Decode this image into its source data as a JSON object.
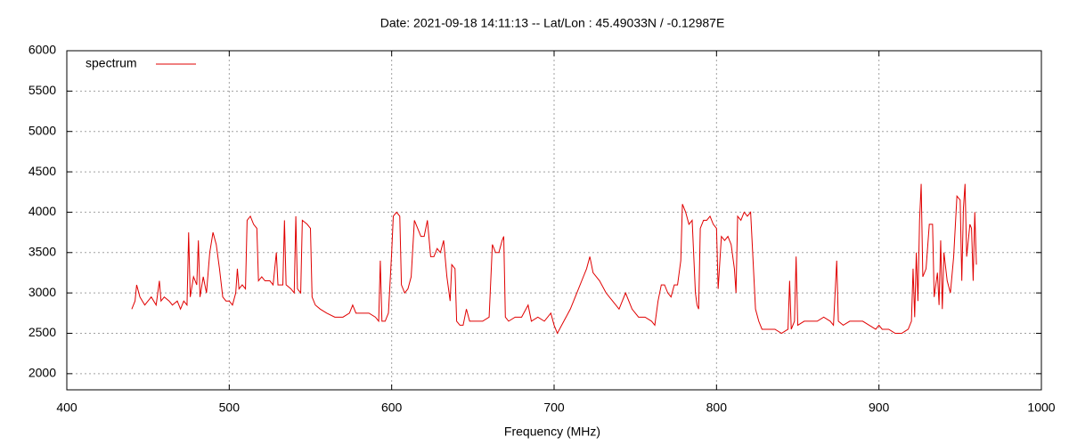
{
  "chart_data": {
    "type": "line",
    "title": "Date: 2021-09-18 14:11:13  --  Lat/Lon : 45.49033N / -0.12987E",
    "x_label": "Frequency (MHz)",
    "xlim": [
      400,
      1000
    ],
    "xticks": [
      400,
      500,
      600,
      700,
      800,
      900,
      1000
    ],
    "ylim": [
      1800,
      6000
    ],
    "yticks": [
      2000,
      2500,
      3000,
      3500,
      4000,
      4500,
      5000,
      5500,
      6000
    ],
    "grid": true,
    "legend": "top-left",
    "x": [
      440,
      442,
      443,
      445,
      448,
      450,
      452,
      455,
      457,
      458,
      460,
      463,
      465,
      468,
      470,
      472,
      474,
      475,
      476,
      478,
      480,
      481,
      482,
      484,
      486,
      488,
      490,
      492,
      494,
      496,
      498,
      500,
      502,
      504,
      505,
      506,
      508,
      510,
      511,
      513,
      515,
      517,
      518,
      520,
      522,
      525,
      527,
      529,
      530,
      533,
      534,
      535,
      538,
      540,
      541,
      542,
      544,
      545,
      548,
      550,
      551,
      553,
      556,
      560,
      565,
      570,
      574,
      576,
      578,
      582,
      586,
      590,
      592,
      593,
      594,
      596,
      598,
      600,
      601,
      603,
      605,
      606,
      608,
      610,
      612,
      614,
      616,
      618,
      620,
      622,
      624,
      626,
      628,
      630,
      632,
      634,
      636,
      637,
      639,
      640,
      642,
      644,
      646,
      648,
      652,
      656,
      660,
      662,
      664,
      666,
      668,
      669,
      670,
      672,
      676,
      680,
      684,
      686,
      690,
      694,
      698,
      700,
      702,
      706,
      710,
      714,
      718,
      720,
      722,
      724,
      728,
      732,
      736,
      740,
      744,
      748,
      752,
      756,
      760,
      762,
      764,
      766,
      768,
      770,
      772,
      774,
      776,
      778,
      779,
      781,
      783,
      785,
      787,
      788,
      789,
      790,
      792,
      794,
      796,
      798,
      800,
      801,
      803,
      805,
      807,
      809,
      811,
      812,
      813,
      815,
      817,
      819,
      821,
      822,
      824,
      826,
      828,
      832,
      836,
      840,
      844,
      845,
      846,
      848,
      849,
      850,
      854,
      858,
      862,
      866,
      870,
      872,
      874,
      875,
      878,
      882,
      886,
      890,
      894,
      898,
      900,
      902,
      906,
      910,
      914,
      918,
      920,
      921,
      922,
      923,
      924,
      925,
      926,
      927,
      929,
      931,
      933,
      934,
      936,
      937,
      938,
      939,
      940,
      942,
      944,
      946,
      948,
      950,
      951,
      952,
      953,
      954,
      956,
      957,
      958,
      959,
      960
    ],
    "series": [
      {
        "name": "spectrum",
        "color": "#e00000",
        "values": [
          2800,
          2900,
          3100,
          2950,
          2850,
          2900,
          2950,
          2850,
          3150,
          2900,
          2950,
          2900,
          2850,
          2900,
          2800,
          2900,
          2850,
          3750,
          2950,
          3200,
          3100,
          3650,
          2950,
          3200,
          3000,
          3500,
          3750,
          3600,
          3300,
          2950,
          2900,
          2900,
          2850,
          3000,
          3300,
          3050,
          3100,
          3050,
          3900,
          3950,
          3850,
          3800,
          3150,
          3200,
          3150,
          3150,
          3100,
          3500,
          3100,
          3100,
          3900,
          3100,
          3050,
          3000,
          3950,
          3050,
          3000,
          3900,
          3850,
          3800,
          2950,
          2850,
          2800,
          2750,
          2700,
          2700,
          2750,
          2850,
          2750,
          2750,
          2750,
          2700,
          2650,
          3400,
          2650,
          2650,
          2750,
          3500,
          3950,
          4000,
          3950,
          3100,
          3000,
          3050,
          3200,
          3900,
          3800,
          3700,
          3700,
          3900,
          3450,
          3450,
          3550,
          3500,
          3650,
          3200,
          2900,
          3350,
          3300,
          2650,
          2600,
          2600,
          2800,
          2650,
          2650,
          2650,
          2700,
          3600,
          3500,
          3500,
          3650,
          3700,
          2700,
          2650,
          2700,
          2700,
          2850,
          2650,
          2700,
          2650,
          2750,
          2600,
          2500,
          2650,
          2800,
          3000,
          3200,
          3300,
          3450,
          3250,
          3150,
          3000,
          2900,
          2800,
          3000,
          2800,
          2700,
          2700,
          2650,
          2600,
          2900,
          3100,
          3100,
          3000,
          2950,
          3100,
          3100,
          3400,
          4100,
          4000,
          3850,
          3900,
          3000,
          2850,
          2800,
          3800,
          3900,
          3900,
          3950,
          3850,
          3800,
          3050,
          3700,
          3650,
          3700,
          3600,
          3300,
          3000,
          3950,
          3900,
          4000,
          3950,
          4000,
          3600,
          2800,
          2650,
          2550,
          2550,
          2550,
          2500,
          2550,
          3150,
          2550,
          2650,
          3450,
          2600,
          2650,
          2650,
          2650,
          2700,
          2650,
          2600,
          3400,
          2650,
          2600,
          2650,
          2650,
          2650,
          2600,
          2550,
          2600,
          2550,
          2550,
          2500,
          2500,
          2550,
          2650,
          3300,
          2700,
          3500,
          2900,
          3900,
          4350,
          3200,
          3300,
          3850,
          3850,
          2950,
          3250,
          2850,
          3650,
          2800,
          3500,
          3150,
          3000,
          3450,
          4200,
          4150,
          3150,
          4050,
          4350,
          3450,
          3850,
          3800,
          3150,
          4000,
          3350
        ]
      }
    ]
  }
}
